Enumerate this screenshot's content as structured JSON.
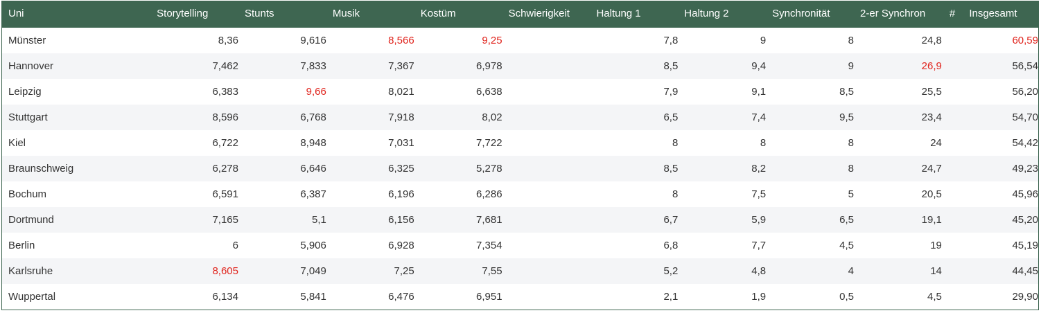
{
  "table": {
    "columns": [
      {
        "key": "uni",
        "label": "Uni"
      },
      {
        "key": "storytelling",
        "label": "Storytelling"
      },
      {
        "key": "stunts",
        "label": "Stunts"
      },
      {
        "key": "musik",
        "label": "Musik"
      },
      {
        "key": "kostuem",
        "label": "Kostüm"
      },
      {
        "key": "schwierigkeit",
        "label": "Schwierigkeit"
      },
      {
        "key": "haltung1",
        "label": "Haltung 1"
      },
      {
        "key": "haltung2",
        "label": "Haltung 2"
      },
      {
        "key": "synchronitaet",
        "label": "Synchronität"
      },
      {
        "key": "synchron2",
        "label": "2-er Synchron"
      },
      {
        "key": "hash",
        "label": "#"
      },
      {
        "key": "insgesamt",
        "label": "Insgesamt"
      }
    ],
    "highlight_color": "#e0231c",
    "header_color": "#3e6651",
    "rows": [
      {
        "uni": "Münster",
        "storytelling": "8,36",
        "stunts": "9,616",
        "musik": "8,566",
        "kostuem": "9,25",
        "schwierigkeit": "",
        "haltung1": "7,8",
        "haltung2": "9",
        "synchronitaet": "8",
        "synchron2": "24,8",
        "insgesamt": "60,59",
        "highlight": [
          "musik",
          "kostuem",
          "insgesamt"
        ]
      },
      {
        "uni": "Hannover",
        "storytelling": "7,462",
        "stunts": "7,833",
        "musik": "7,367",
        "kostuem": "6,978",
        "schwierigkeit": "",
        "haltung1": "8,5",
        "haltung2": "9,4",
        "synchronitaet": "9",
        "synchron2": "26,9",
        "insgesamt": "56,54",
        "highlight": [
          "synchron2"
        ]
      },
      {
        "uni": "Leipzig",
        "storytelling": "6,383",
        "stunts": "9,66",
        "musik": "8,021",
        "kostuem": "6,638",
        "schwierigkeit": "",
        "haltung1": "7,9",
        "haltung2": "9,1",
        "synchronitaet": "8,5",
        "synchron2": "25,5",
        "insgesamt": "56,20",
        "highlight": [
          "stunts"
        ]
      },
      {
        "uni": "Stuttgart",
        "storytelling": "8,596",
        "stunts": "6,768",
        "musik": "7,918",
        "kostuem": "8,02",
        "schwierigkeit": "",
        "haltung1": "6,5",
        "haltung2": "7,4",
        "synchronitaet": "9,5",
        "synchron2": "23,4",
        "insgesamt": "54,70",
        "highlight": []
      },
      {
        "uni": "Kiel",
        "storytelling": "6,722",
        "stunts": "8,948",
        "musik": "7,031",
        "kostuem": "7,722",
        "schwierigkeit": "",
        "haltung1": "8",
        "haltung2": "8",
        "synchronitaet": "8",
        "synchron2": "24",
        "insgesamt": "54,42",
        "highlight": []
      },
      {
        "uni": "Braunschweig",
        "storytelling": "6,278",
        "stunts": "6,646",
        "musik": "6,325",
        "kostuem": "5,278",
        "schwierigkeit": "",
        "haltung1": "8,5",
        "haltung2": "8,2",
        "synchronitaet": "8",
        "synchron2": "24,7",
        "insgesamt": "49,23",
        "highlight": []
      },
      {
        "uni": "Bochum",
        "storytelling": "6,591",
        "stunts": "6,387",
        "musik": "6,196",
        "kostuem": "6,286",
        "schwierigkeit": "",
        "haltung1": "8",
        "haltung2": "7,5",
        "synchronitaet": "5",
        "synchron2": "20,5",
        "insgesamt": "45,96",
        "highlight": []
      },
      {
        "uni": "Dortmund",
        "storytelling": "7,165",
        "stunts": "5,1",
        "musik": "6,156",
        "kostuem": "7,681",
        "schwierigkeit": "",
        "haltung1": "6,7",
        "haltung2": "5,9",
        "synchronitaet": "6,5",
        "synchron2": "19,1",
        "insgesamt": "45,20",
        "highlight": []
      },
      {
        "uni": "Berlin",
        "storytelling": "6",
        "stunts": "5,906",
        "musik": "6,928",
        "kostuem": "7,354",
        "schwierigkeit": "",
        "haltung1": "6,8",
        "haltung2": "7,7",
        "synchronitaet": "4,5",
        "synchron2": "19",
        "insgesamt": "45,19",
        "highlight": []
      },
      {
        "uni": "Karlsruhe",
        "storytelling": "8,605",
        "stunts": "7,049",
        "musik": "7,25",
        "kostuem": "7,55",
        "schwierigkeit": "",
        "haltung1": "5,2",
        "haltung2": "4,8",
        "synchronitaet": "4",
        "synchron2": "14",
        "insgesamt": "44,45",
        "highlight": [
          "storytelling"
        ]
      },
      {
        "uni": "Wuppertal",
        "storytelling": "6,134",
        "stunts": "5,841",
        "musik": "6,476",
        "kostuem": "6,951",
        "schwierigkeit": "",
        "haltung1": "2,1",
        "haltung2": "1,9",
        "synchronitaet": "0,5",
        "synchron2": "4,5",
        "insgesamt": "29,90",
        "highlight": []
      }
    ]
  }
}
